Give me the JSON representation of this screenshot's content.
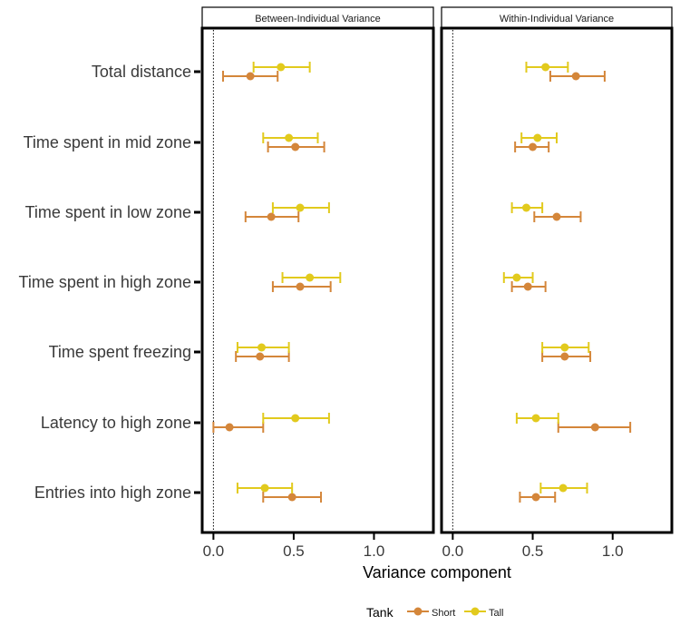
{
  "chart_data": {
    "type": "scatter",
    "subtype": "point-range (faceted)",
    "xlabel": "Variance component",
    "xlim": [
      -0.07,
      1.37
    ],
    "x_ticks": [
      "0.0",
      "0.5",
      "1.0"
    ],
    "x_tick_values": [
      0,
      0.5,
      1.0
    ],
    "reference_line_x": 0,
    "categories": [
      "Total distance",
      "Time spent in mid zone",
      "Time spent in low zone",
      "Time spent in high zone",
      "Time spent freezing",
      "Latency to high zone",
      "Entries into high zone"
    ],
    "legend": {
      "title": "Tank",
      "placement": "bottom",
      "entries": [
        "Short",
        "Tall"
      ]
    },
    "colors": {
      "Short": "#D4863A",
      "Tall": "#E2CA1D"
    },
    "grid": false,
    "facets": [
      {
        "title": "Between-Individual Variance",
        "series": [
          {
            "name": "Short",
            "points": [
              {
                "category": "Total distance",
                "estimate": 0.23,
                "lower": 0.06,
                "upper": 0.4
              },
              {
                "category": "Time spent in mid zone",
                "estimate": 0.51,
                "lower": 0.34,
                "upper": 0.69
              },
              {
                "category": "Time spent in low zone",
                "estimate": 0.36,
                "lower": 0.2,
                "upper": 0.53
              },
              {
                "category": "Time spent in high zone",
                "estimate": 0.54,
                "lower": 0.37,
                "upper": 0.73
              },
              {
                "category": "Time spent freezing",
                "estimate": 0.29,
                "lower": 0.14,
                "upper": 0.47
              },
              {
                "category": "Latency to high zone",
                "estimate": 0.1,
                "lower": 0.0,
                "upper": 0.31
              },
              {
                "category": "Entries into high zone",
                "estimate": 0.49,
                "lower": 0.31,
                "upper": 0.67
              }
            ]
          },
          {
            "name": "Tall",
            "points": [
              {
                "category": "Total distance",
                "estimate": 0.42,
                "lower": 0.25,
                "upper": 0.6
              },
              {
                "category": "Time spent in mid zone",
                "estimate": 0.47,
                "lower": 0.31,
                "upper": 0.65
              },
              {
                "category": "Time spent in low zone",
                "estimate": 0.54,
                "lower": 0.37,
                "upper": 0.72
              },
              {
                "category": "Time spent in high zone",
                "estimate": 0.6,
                "lower": 0.43,
                "upper": 0.79
              },
              {
                "category": "Time spent freezing",
                "estimate": 0.3,
                "lower": 0.15,
                "upper": 0.47
              },
              {
                "category": "Latency to high zone",
                "estimate": 0.51,
                "lower": 0.31,
                "upper": 0.72
              },
              {
                "category": "Entries into high zone",
                "estimate": 0.32,
                "lower": 0.15,
                "upper": 0.49
              }
            ]
          }
        ]
      },
      {
        "title": "Within-Individual Variance",
        "series": [
          {
            "name": "Short",
            "points": [
              {
                "category": "Total distance",
                "estimate": 0.77,
                "lower": 0.61,
                "upper": 0.95
              },
              {
                "category": "Time spent in mid zone",
                "estimate": 0.5,
                "lower": 0.39,
                "upper": 0.6
              },
              {
                "category": "Time spent in low zone",
                "estimate": 0.65,
                "lower": 0.51,
                "upper": 0.8
              },
              {
                "category": "Time spent in high zone",
                "estimate": 0.47,
                "lower": 0.37,
                "upper": 0.58
              },
              {
                "category": "Time spent freezing",
                "estimate": 0.7,
                "lower": 0.56,
                "upper": 0.86
              },
              {
                "category": "Latency to high zone",
                "estimate": 0.89,
                "lower": 0.66,
                "upper": 1.11
              },
              {
                "category": "Entries into high zone",
                "estimate": 0.52,
                "lower": 0.42,
                "upper": 0.64
              }
            ]
          },
          {
            "name": "Tall",
            "points": [
              {
                "category": "Total distance",
                "estimate": 0.58,
                "lower": 0.46,
                "upper": 0.72
              },
              {
                "category": "Time spent in mid zone",
                "estimate": 0.53,
                "lower": 0.43,
                "upper": 0.65
              },
              {
                "category": "Time spent in low zone",
                "estimate": 0.46,
                "lower": 0.37,
                "upper": 0.56
              },
              {
                "category": "Time spent in high zone",
                "estimate": 0.4,
                "lower": 0.32,
                "upper": 0.5
              },
              {
                "category": "Time spent freezing",
                "estimate": 0.7,
                "lower": 0.56,
                "upper": 0.85
              },
              {
                "category": "Latency to high zone",
                "estimate": 0.52,
                "lower": 0.4,
                "upper": 0.66
              },
              {
                "category": "Entries into high zone",
                "estimate": 0.69,
                "lower": 0.55,
                "upper": 0.84
              }
            ]
          }
        ]
      }
    ]
  }
}
